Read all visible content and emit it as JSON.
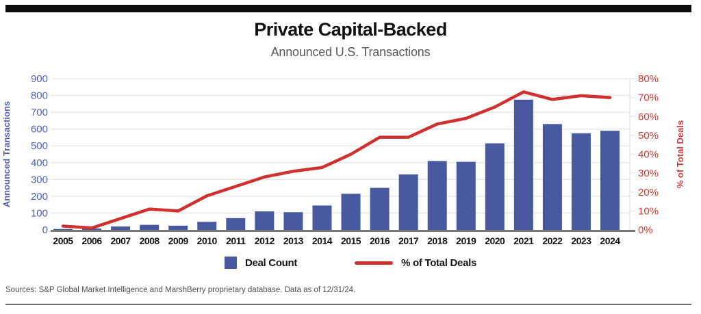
{
  "page": {
    "title": "Private Capital-Backed",
    "subtitle": "Announced U.S. Transactions",
    "footer": "Sources: S&P Global Market Intelligence and MarshBerry proprietary database. Data as of 12/31/24."
  },
  "legend": {
    "deal_count_label": "Deal Count",
    "pct_label": "% of Total Deals"
  },
  "colors": {
    "bar": "#4859a0",
    "line": "#ce312e",
    "left_axis_text": "#4e62ac",
    "right_axis_text": "#ce3a36",
    "gridline": "#e5e3e6",
    "x_axis_line": "#7a7a7a",
    "title": "#111111",
    "subtitle": "#565656"
  },
  "chart_data": {
    "type": "bar",
    "title": "Private Capital-Backed",
    "subtitle": "Announced U.S. Transactions",
    "categories": [
      "2005",
      "2006",
      "2007",
      "2008",
      "2009",
      "2010",
      "2011",
      "2012",
      "2013",
      "2014",
      "2015",
      "2016",
      "2017",
      "2018",
      "2019",
      "2020",
      "2021",
      "2022",
      "2023",
      "2024"
    ],
    "series": [
      {
        "name": "Deal Count",
        "type": "bar",
        "axis": "left",
        "color": "#4859a0",
        "values": [
          5,
          8,
          20,
          30,
          25,
          48,
          70,
          110,
          105,
          145,
          215,
          250,
          330,
          410,
          405,
          515,
          775,
          630,
          575,
          590
        ]
      },
      {
        "name": "% of Total Deals",
        "type": "line",
        "axis": "right",
        "color": "#ce312e",
        "values": [
          2,
          1,
          6,
          11,
          10,
          18,
          23,
          28,
          31,
          33,
          40,
          49,
          49,
          56,
          59,
          65,
          73,
          69,
          71,
          70
        ]
      }
    ],
    "left_axis": {
      "label": "Announced Transactions",
      "min": 0,
      "max": 900,
      "step": 100,
      "tick_labels": [
        "0",
        "100",
        "200",
        "300",
        "400",
        "500",
        "600",
        "700",
        "800",
        "900"
      ]
    },
    "right_axis": {
      "label": "% of Total Deals",
      "min": 0,
      "max": 80,
      "step": 10,
      "suffix": "%",
      "tick_labels": [
        "0%",
        "10%",
        "20%",
        "30%",
        "40%",
        "50%",
        "60%",
        "70%",
        "80%"
      ]
    },
    "grid": true,
    "legend_position": "bottom",
    "xlabel": "",
    "ylabel": "Announced Transactions"
  }
}
